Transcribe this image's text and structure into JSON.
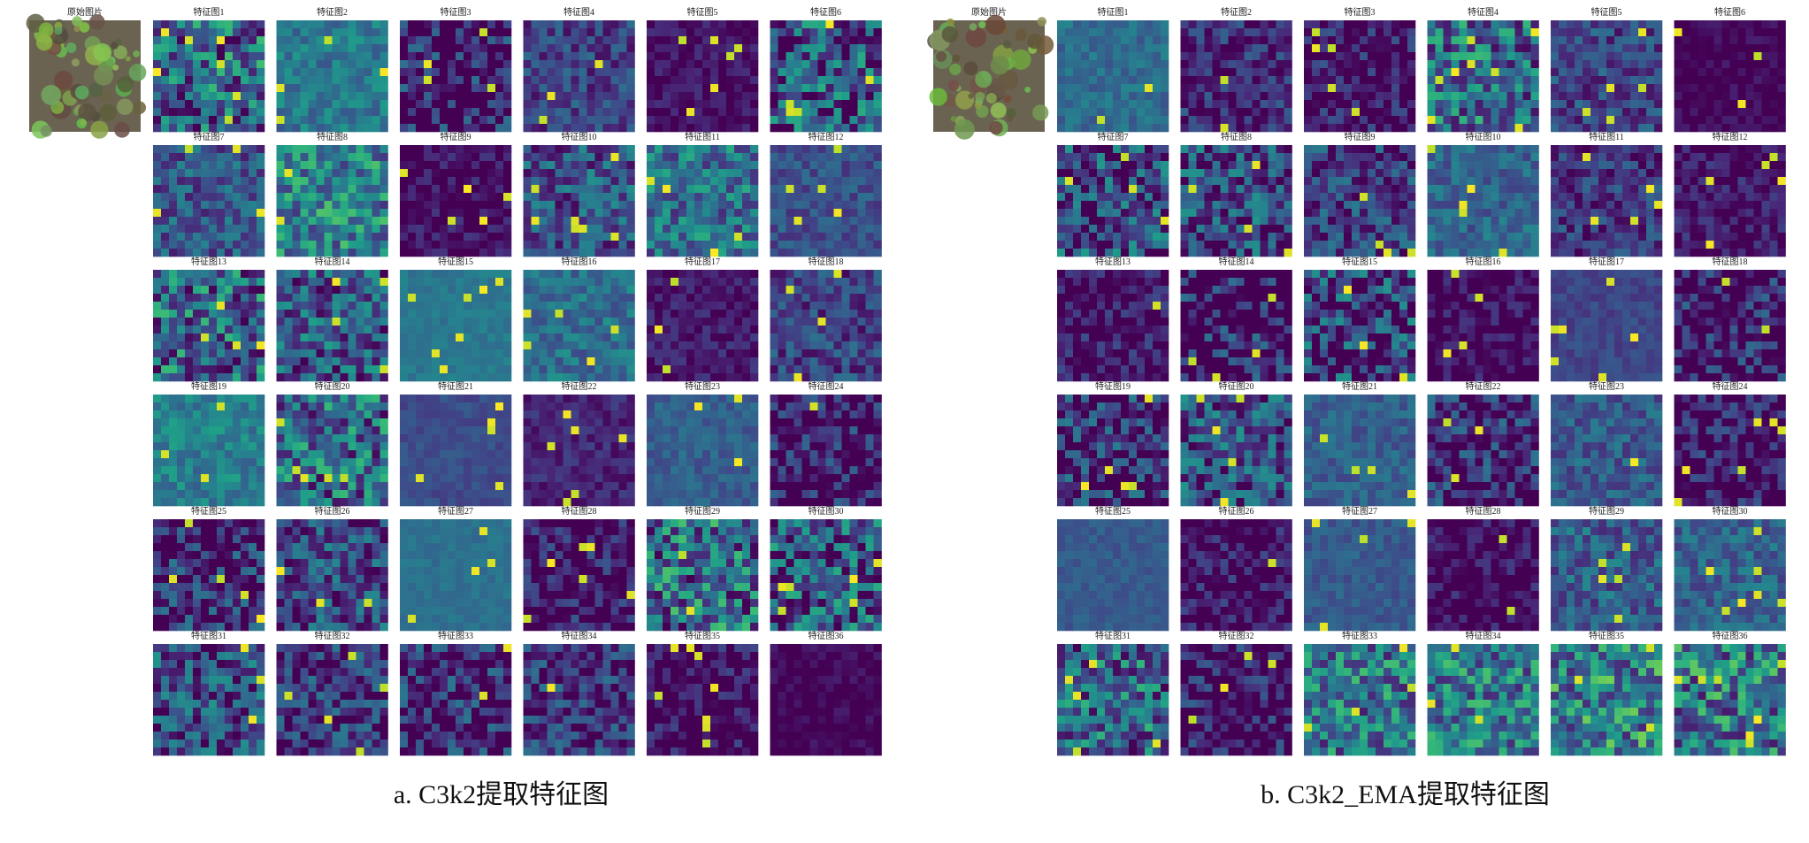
{
  "panels": [
    {
      "original_label": "原始图片",
      "caption": "a. C3k2提取特征图",
      "maps": [
        "特征图1",
        "特征图2",
        "特征图3",
        "特征图4",
        "特征图5",
        "特征图6",
        "特征图7",
        "特征图8",
        "特征图9",
        "特征图10",
        "特征图11",
        "特征图12",
        "特征图13",
        "特征图14",
        "特征图15",
        "特征图16",
        "特征图17",
        "特征图18",
        "特征图19",
        "特征图20",
        "特征图21",
        "特征图22",
        "特征图23",
        "特征图24",
        "特征图25",
        "特征图26",
        "特征图27",
        "特征图28",
        "特征图29",
        "特征图30",
        "特征图31",
        "特征图32",
        "特征图33",
        "特征图34",
        "特征图35",
        "特征图36"
      ]
    },
    {
      "original_label": "原始图片",
      "caption": "b. C3k2_EMA提取特征图",
      "maps": [
        "特征图1",
        "特征图2",
        "特征图3",
        "特征图4",
        "特征图5",
        "特征图6",
        "特征图7",
        "特征图8",
        "特征图9",
        "特征图10",
        "特征图11",
        "特征图12",
        "特征图13",
        "特征图14",
        "特征图15",
        "特征图16",
        "特征图17",
        "特征图18",
        "特征图19",
        "特征图20",
        "特征图21",
        "特征图22",
        "特征图23",
        "特征图24",
        "特征图25",
        "特征图26",
        "特征图27",
        "特征图28",
        "特征图29",
        "特征图30",
        "特征图31",
        "特征图32",
        "特征图33",
        "特征图34",
        "特征图35",
        "特征图36"
      ]
    }
  ]
}
